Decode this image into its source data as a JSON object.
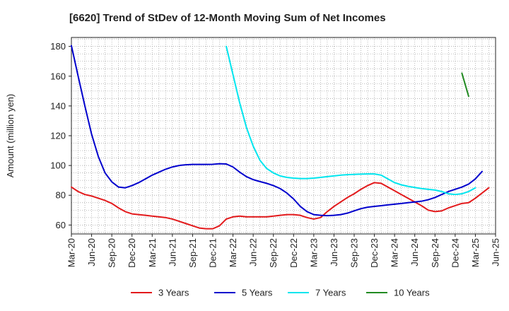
{
  "chart_data": {
    "type": "line",
    "title": "[6620]  Trend of StDev of 12-Month Moving Sum of Net Incomes",
    "xlabel": "",
    "ylabel": "Amount (million yen)",
    "ylim": [
      54,
      186
    ],
    "yticks": [
      60,
      80,
      100,
      120,
      140,
      160,
      180
    ],
    "xticks": [
      "Mar-20",
      "Jun-20",
      "Sep-20",
      "Dec-20",
      "Mar-21",
      "Jun-21",
      "Sep-21",
      "Dec-21",
      "Mar-22",
      "Jun-22",
      "Sep-22",
      "Dec-22",
      "Mar-23",
      "Jun-23",
      "Sep-23",
      "Dec-23",
      "Mar-24",
      "Jun-24",
      "Sep-24",
      "Dec-24",
      "Mar-25",
      "Jun-25"
    ],
    "grid": true,
    "legend_position": "bottom",
    "series": [
      {
        "name": "3 Years",
        "color": "#e31a1c",
        "start": "Mar-20",
        "values": [
          85.5,
          82.5,
          80.5,
          79.5,
          78,
          76.5,
          74.5,
          71.5,
          69,
          67.5,
          67,
          66.5,
          66,
          65.5,
          65,
          64,
          62.5,
          61,
          59.5,
          58,
          57.5,
          57.5,
          59.5,
          64,
          65.5,
          66,
          65.5,
          65.5,
          65.5,
          65.5,
          66,
          66.5,
          67,
          67,
          66.5,
          65,
          64,
          65,
          69,
          72.5,
          75.5,
          78.5,
          81,
          84,
          86.5,
          88.5,
          88,
          85.5,
          83,
          80.5,
          78,
          75.5,
          73,
          70,
          69,
          69.5,
          71.5,
          73,
          74.5,
          75,
          78,
          81.5,
          85
        ]
      },
      {
        "name": "5 Years",
        "color": "#0000cd",
        "start": "Mar-20",
        "values": [
          180.5,
          160,
          140,
          121,
          106,
          95,
          89,
          85.5,
          85,
          86.5,
          88.5,
          91,
          93.5,
          95.5,
          97.5,
          99,
          100,
          100.5,
          100.7,
          100.7,
          100.7,
          100.8,
          101.2,
          101,
          99,
          95.5,
          92.5,
          90.5,
          89.2,
          88,
          86.5,
          84.5,
          81.5,
          77.5,
          72.5,
          69,
          67,
          66.5,
          66.3,
          66.5,
          67,
          68,
          69.5,
          71,
          72,
          72.5,
          73,
          73.5,
          74,
          74.5,
          75,
          75.5,
          76,
          77,
          78.5,
          80.5,
          82.5,
          84,
          85.5,
          87.5,
          91,
          96
        ]
      },
      {
        "name": "7 Years",
        "color": "#00e5ee",
        "start": "Feb-22",
        "values": [
          180,
          161,
          142,
          125.5,
          113,
          103.5,
          98,
          95,
          93,
          92,
          91.5,
          91.2,
          91.2,
          91.5,
          92,
          92.5,
          93,
          93.5,
          93.8,
          94,
          94.2,
          94.3,
          94.3,
          93.5,
          91,
          88.5,
          87,
          86,
          85.2,
          84.5,
          84,
          83.5,
          82.5,
          81,
          80.5,
          81,
          82.5,
          85
        ]
      },
      {
        "name": "10 Years",
        "color": "#228b22",
        "start": "Jan-25",
        "values": [
          162,
          146.5
        ]
      }
    ]
  }
}
